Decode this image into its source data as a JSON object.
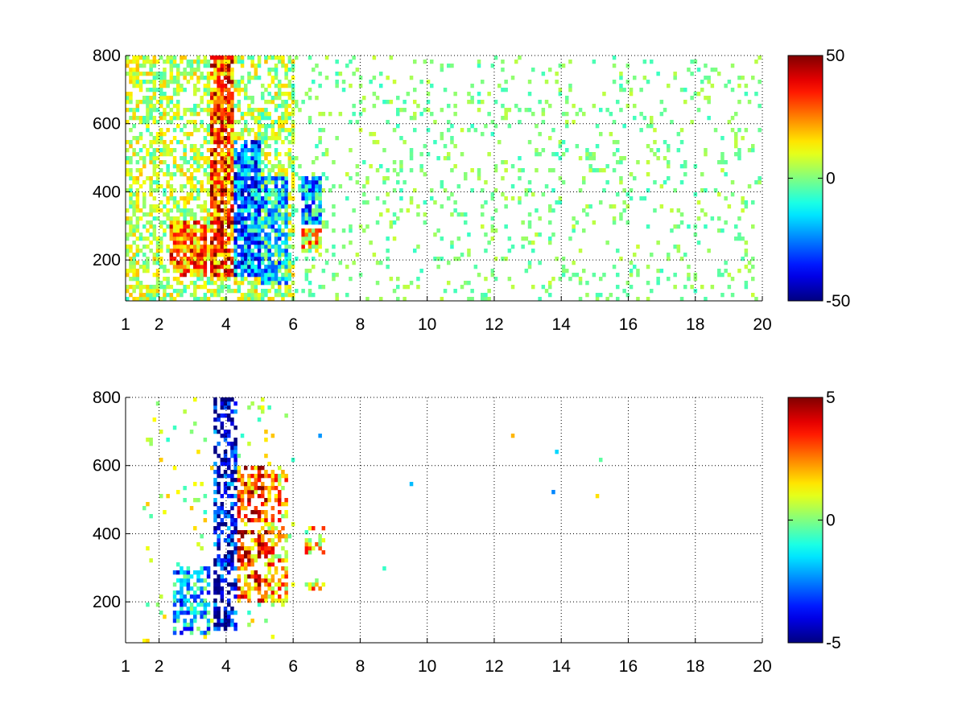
{
  "chart_data": [
    {
      "type": "heatmap",
      "title": "",
      "xlabel": "",
      "ylabel": "",
      "xlim": [
        1,
        20
      ],
      "ylim": [
        80,
        800
      ],
      "x_ticks": [
        "1",
        "2",
        "4",
        "6",
        "8",
        "10",
        "12",
        "14",
        "16",
        "18",
        "20"
      ],
      "y_ticks": [
        "200",
        "400",
        "600",
        "800"
      ],
      "grid": true,
      "colormap": "jet",
      "colorbar": {
        "min": -50,
        "max": 50,
        "tick_labels": [
          "50",
          "0",
          "-50"
        ]
      },
      "dense_x_range": [
        1,
        6
      ],
      "sparse_x_range": [
        6,
        20
      ],
      "hotspots": [
        {
          "x_range": [
            2.3,
            3.4
          ],
          "y_range": [
            150,
            320
          ],
          "value": 25
        },
        {
          "x_range": [
            3.5,
            4.2
          ],
          "y_range": [
            150,
            800
          ],
          "value": 30
        },
        {
          "x_range": [
            4.2,
            5.0
          ],
          "y_range": [
            150,
            550
          ],
          "value": -25
        },
        {
          "x_range": [
            5.0,
            5.8
          ],
          "y_range": [
            130,
            450
          ],
          "value": -15
        },
        {
          "x_range": [
            6.2,
            6.9
          ],
          "y_range": [
            300,
            450
          ],
          "value": -20
        },
        {
          "x_range": [
            6.2,
            6.9
          ],
          "y_range": [
            220,
            290
          ],
          "value": 15
        }
      ]
    },
    {
      "type": "heatmap",
      "title": "",
      "xlabel": "",
      "ylabel": "",
      "xlim": [
        1,
        20
      ],
      "ylim": [
        80,
        800
      ],
      "x_ticks": [
        "1",
        "2",
        "4",
        "6",
        "8",
        "10",
        "12",
        "14",
        "16",
        "18",
        "20"
      ],
      "y_ticks": [
        "200",
        "400",
        "600",
        "800"
      ],
      "grid": true,
      "colormap": "jet",
      "colorbar": {
        "min": -5,
        "max": 5,
        "tick_labels": [
          "5",
          "0",
          "-5"
        ]
      },
      "dense_x_range": [
        1.5,
        6
      ],
      "hotspots": [
        {
          "x_range": [
            2.4,
            3.5
          ],
          "y_range": [
            100,
            300
          ],
          "value": -2
        },
        {
          "x_range": [
            3.6,
            4.3
          ],
          "y_range": [
            120,
            800
          ],
          "value": -4
        },
        {
          "x_range": [
            4.3,
            5.2
          ],
          "y_range": [
            200,
            600
          ],
          "value": 3
        },
        {
          "x_range": [
            5.2,
            5.8
          ],
          "y_range": [
            200,
            600
          ],
          "value": 2
        },
        {
          "x_range": [
            6.3,
            7.0
          ],
          "y_range": [
            340,
            420
          ],
          "value": 1.5
        },
        {
          "x_range": [
            6.3,
            7.0
          ],
          "y_range": [
            230,
            270
          ],
          "value": 1.5
        }
      ]
    }
  ]
}
